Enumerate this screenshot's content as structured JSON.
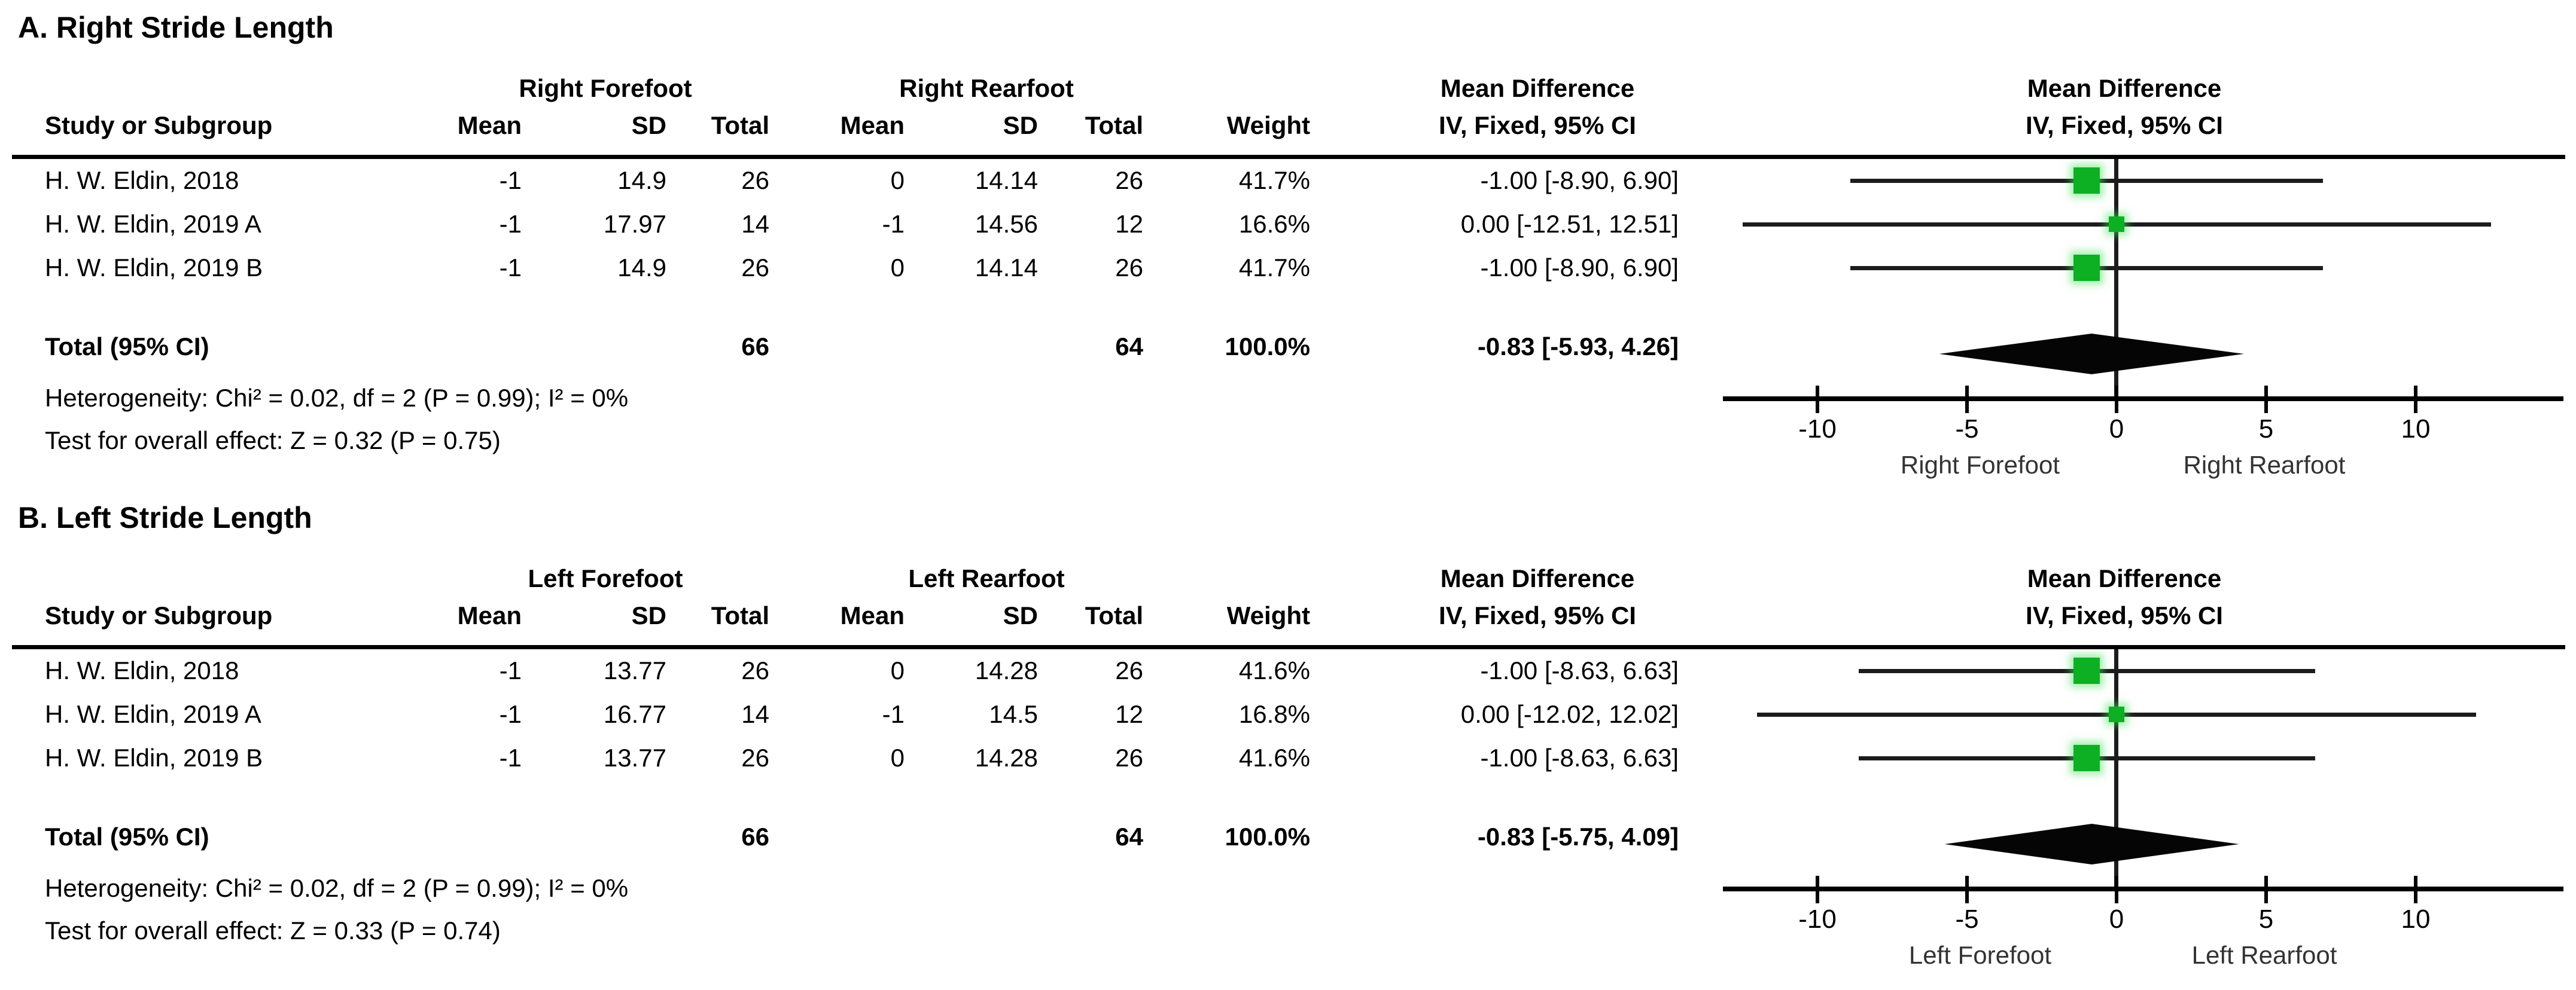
{
  "colors": {
    "square_green": "#0CB022",
    "square_glow": "rgba(70,225,95,0.5)",
    "ci_line": "#1c1c1c",
    "axis_black": "#000000",
    "foot_label_gray": "#333333"
  },
  "panels": [
    {
      "title": "A. Right Stride Length",
      "group1_label": "Right Forefoot",
      "group2_label": "Right Rearfoot",
      "md_header": "Mean Difference",
      "ivci_header": "IV, Fixed, 95% CI",
      "plot_md_header": "Mean Difference",
      "plot_ivci_header": "IV, Fixed, 95% CI",
      "col_headers": {
        "study": "Study or Subgroup",
        "mean": "Mean",
        "sd": "SD",
        "total": "Total",
        "weight": "Weight"
      },
      "rows": [
        {
          "study": "H. W. Eldin, 2018",
          "mean1": "-1",
          "sd1": "14.9",
          "total1": "26",
          "mean2": "0",
          "sd2": "14.14",
          "total2": "26",
          "weight": "41.7%",
          "ci_text": "-1.00 [-8.90, 6.90]",
          "est": -1.0,
          "lo": -8.9,
          "hi": 6.9
        },
        {
          "study": "H. W. Eldin, 2019 A",
          "mean1": "-1",
          "sd1": "17.97",
          "total1": "14",
          "mean2": "-1",
          "sd2": "14.56",
          "total2": "12",
          "weight": "16.6%",
          "ci_text": "0.00 [-12.51, 12.51]",
          "est": 0.0,
          "lo": -12.51,
          "hi": 12.51
        },
        {
          "study": "H. W. Eldin, 2019 B",
          "mean1": "-1",
          "sd1": "14.9",
          "total1": "26",
          "mean2": "0",
          "sd2": "14.14",
          "total2": "26",
          "weight": "41.7%",
          "ci_text": "-1.00 [-8.90, 6.90]",
          "est": -1.0,
          "lo": -8.9,
          "hi": 6.9
        }
      ],
      "total": {
        "label": "Total (95% CI)",
        "total1": "66",
        "total2": "64",
        "weight": "100.0%",
        "ci_text": "-0.83 [-5.93, 4.26]",
        "est": -0.83,
        "lo": -5.93,
        "hi": 4.26
      },
      "heterogeneity": "Heterogeneity: Chi² = 0.02, df = 2 (P = 0.99); I² = 0%",
      "overall_effect": "Test for overall effect: Z = 0.32 (P = 0.75)",
      "axis_ticks": [
        -10,
        -5,
        0,
        5,
        10
      ],
      "foot_left": "Right Forefoot",
      "foot_right": "Right Rearfoot"
    },
    {
      "title": "B. Left Stride Length",
      "group1_label": "Left Forefoot",
      "group2_label": "Left Rearfoot",
      "md_header": "Mean Difference",
      "ivci_header": "IV, Fixed, 95% CI",
      "plot_md_header": "Mean Difference",
      "plot_ivci_header": "IV, Fixed, 95% CI",
      "col_headers": {
        "study": "Study or Subgroup",
        "mean": "Mean",
        "sd": "SD",
        "total": "Total",
        "weight": "Weight"
      },
      "rows": [
        {
          "study": "H. W. Eldin, 2018",
          "mean1": "-1",
          "sd1": "13.77",
          "total1": "26",
          "mean2": "0",
          "sd2": "14.28",
          "total2": "26",
          "weight": "41.6%",
          "ci_text": "-1.00 [-8.63, 6.63]",
          "est": -1.0,
          "lo": -8.63,
          "hi": 6.63
        },
        {
          "study": "H. W. Eldin, 2019 A",
          "mean1": "-1",
          "sd1": "16.77",
          "total1": "14",
          "mean2": "-1",
          "sd2": "14.5",
          "total2": "12",
          "weight": "16.8%",
          "ci_text": "0.00 [-12.02, 12.02]",
          "est": 0.0,
          "lo": -12.02,
          "hi": 12.02
        },
        {
          "study": "H. W. Eldin, 2019 B",
          "mean1": "-1",
          "sd1": "13.77",
          "total1": "26",
          "mean2": "0",
          "sd2": "14.28",
          "total2": "26",
          "weight": "41.6%",
          "ci_text": "-1.00 [-8.63, 6.63]",
          "est": -1.0,
          "lo": -8.63,
          "hi": 6.63
        }
      ],
      "total": {
        "label": "Total (95% CI)",
        "total1": "66",
        "total2": "64",
        "weight": "100.0%",
        "ci_text": "-0.83 [-5.75, 4.09]",
        "est": -0.83,
        "lo": -5.75,
        "hi": 4.09
      },
      "heterogeneity": "Heterogeneity: Chi² = 0.02, df = 2 (P = 0.99); I² = 0%",
      "overall_effect": "Test for overall effect: Z = 0.33 (P = 0.74)",
      "axis_ticks": [
        -10,
        -5,
        0,
        5,
        10
      ],
      "foot_left": "Left Forefoot",
      "foot_right": "Left Rearfoot"
    }
  ],
  "chart_data": [
    {
      "type": "scatter",
      "subtype": "forest_plot_fixed_effect",
      "title": "A. Right Stride Length",
      "effect_measure": "Mean Difference IV, Fixed, 95% CI",
      "studies": [
        {
          "name": "H. W. Eldin, 2018",
          "md": -1.0,
          "ci": [
            -8.9,
            6.9
          ],
          "weight_pct": 41.7
        },
        {
          "name": "H. W. Eldin, 2019 A",
          "md": 0.0,
          "ci": [
            -12.51,
            12.51
          ],
          "weight_pct": 16.6
        },
        {
          "name": "H. W. Eldin, 2019 B",
          "md": -1.0,
          "ci": [
            -8.9,
            6.9
          ],
          "weight_pct": 41.7
        }
      ],
      "pooled": {
        "md": -0.83,
        "ci": [
          -5.93,
          4.26
        ],
        "weight_pct": 100.0
      },
      "heterogeneity": {
        "chi2": 0.02,
        "df": 2,
        "p": 0.99,
        "i2_pct": 0
      },
      "overall_effect": {
        "z": 0.32,
        "p": 0.75
      },
      "x_ticks": [
        -10,
        -5,
        0,
        5,
        10
      ],
      "xlim": [
        -13,
        15
      ],
      "favours_left": "Right Forefoot",
      "favours_right": "Right Rearfoot"
    },
    {
      "type": "scatter",
      "subtype": "forest_plot_fixed_effect",
      "title": "B. Left Stride Length",
      "effect_measure": "Mean Difference IV, Fixed, 95% CI",
      "studies": [
        {
          "name": "H. W. Eldin, 2018",
          "md": -1.0,
          "ci": [
            -8.63,
            6.63
          ],
          "weight_pct": 41.6
        },
        {
          "name": "H. W. Eldin, 2019 A",
          "md": 0.0,
          "ci": [
            -12.02,
            12.02
          ],
          "weight_pct": 16.8
        },
        {
          "name": "H. W. Eldin, 2019 B",
          "md": -1.0,
          "ci": [
            -8.63,
            6.63
          ],
          "weight_pct": 41.6
        }
      ],
      "pooled": {
        "md": -0.83,
        "ci": [
          -5.75,
          4.09
        ],
        "weight_pct": 100.0
      },
      "heterogeneity": {
        "chi2": 0.02,
        "df": 2,
        "p": 0.99,
        "i2_pct": 0
      },
      "overall_effect": {
        "z": 0.33,
        "p": 0.74
      },
      "x_ticks": [
        -10,
        -5,
        0,
        5,
        10
      ],
      "xlim": [
        -13,
        15
      ],
      "favours_left": "Left Forefoot",
      "favours_right": "Left Rearfoot"
    }
  ]
}
